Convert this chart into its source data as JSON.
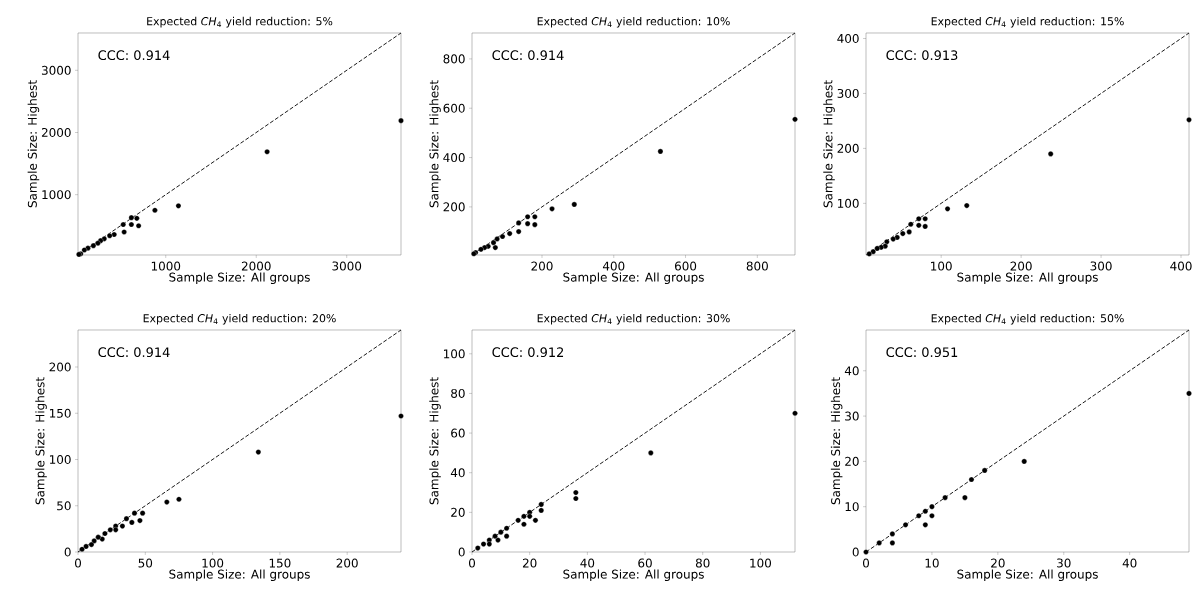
{
  "chart_data": [
    {
      "type": "scatter",
      "title": "Expected *CH*$_{4}$ yield reduction: 5%",
      "xlabel": "Sample Size: All groups",
      "ylabel": "Sample Size: Highest",
      "annotations": [
        "CCC: 0.914"
      ],
      "xlim": [
        30,
        3600
      ],
      "ylim": [
        30,
        3600
      ],
      "xticks": [
        1000,
        2000,
        3000
      ],
      "yticks": [
        1000,
        2000,
        3000
      ],
      "series": [
        {
          "marker": "circle",
          "color": "#000000",
          "x": [
            3600,
            2120,
            1140,
            880,
            680,
            700,
            620,
            620,
            530,
            540,
            430,
            380,
            320,
            280,
            250,
            200,
            140,
            100,
            60,
            40
          ],
          "values": [
            2190,
            1690,
            820,
            750,
            620,
            500,
            630,
            520,
            520,
            400,
            360,
            340,
            290,
            260,
            220,
            180,
            140,
            110,
            50,
            40
          ]
        },
        {
          "type": "line",
          "color": "#000000",
          "line_style": "dashed",
          "x": [
            30,
            3600
          ],
          "values": [
            30,
            3600
          ]
        }
      ]
    },
    {
      "type": "scatter",
      "title": "Expected *CH*$_{4}$ yield reduction: 10%",
      "xlabel": "Sample Size: All groups",
      "ylabel": "Sample Size: Highest",
      "annotations": [
        "CCC: 0.914"
      ],
      "xlim": [
        5,
        905
      ],
      "ylim": [
        5,
        905
      ],
      "xticks": [
        200,
        400,
        600,
        800
      ],
      "yticks": [
        200,
        400,
        600,
        800
      ],
      "series": [
        {
          "marker": "circle",
          "color": "#000000",
          "x": [
            905,
            530,
            290,
            228,
            180,
            160,
            180,
            160,
            135,
            135,
            110,
            90,
            75,
            65,
            70,
            50,
            40,
            30,
            15,
            10
          ],
          "values": [
            555,
            425,
            210,
            192,
            160,
            160,
            128,
            132,
            135,
            100,
            92,
            80,
            70,
            55,
            35,
            40,
            35,
            28,
            15,
            10
          ]
        },
        {
          "type": "line",
          "color": "#000000",
          "line_style": "dashed",
          "x": [
            5,
            905
          ],
          "values": [
            5,
            905
          ]
        }
      ]
    },
    {
      "type": "scatter",
      "title": "Expected *CH*$_{4}$ yield reduction: 15%",
      "xlabel": "Sample Size: All groups",
      "ylabel": "Sample Size: Highest",
      "annotations": [
        "CCC: 0.913"
      ],
      "xlim": [
        6,
        410
      ],
      "ylim": [
        6,
        410
      ],
      "xticks": [
        100,
        200,
        300,
        400
      ],
      "yticks": [
        100,
        200,
        300,
        400
      ],
      "series": [
        {
          "marker": "circle",
          "color": "#000000",
          "x": [
            410,
            237,
            132,
            108,
            80,
            72,
            80,
            72,
            62,
            60,
            52,
            45,
            40,
            32,
            30,
            25,
            20,
            15,
            10
          ],
          "values": [
            252,
            190,
            96,
            90,
            72,
            72,
            58,
            60,
            62,
            48,
            45,
            38,
            35,
            30,
            22,
            20,
            18,
            12,
            8
          ]
        },
        {
          "type": "line",
          "color": "#000000",
          "line_style": "dashed",
          "x": [
            6,
            410
          ],
          "values": [
            6,
            410
          ]
        }
      ]
    },
    {
      "type": "scatter",
      "title": "Expected *CH*$_{4}$ yield reduction: 20%",
      "xlabel": "Sample Size: All groups",
      "ylabel": "Sample Size: Highest",
      "annotations": [
        "CCC: 0.914"
      ],
      "xlim": [
        0,
        240
      ],
      "ylim": [
        0,
        240
      ],
      "xticks": [
        0,
        50,
        100,
        150,
        200
      ],
      "yticks": [
        0,
        50,
        100,
        150,
        200
      ],
      "series": [
        {
          "marker": "circle",
          "color": "#000000",
          "x": [
            240,
            134,
            75,
            66,
            48,
            42,
            46,
            36,
            40,
            33,
            28,
            28,
            24,
            20,
            18,
            15,
            12,
            10,
            6,
            3
          ],
          "values": [
            147,
            108,
            57,
            54,
            42,
            42,
            34,
            36,
            32,
            28,
            28,
            24,
            24,
            20,
            14,
            16,
            12,
            8,
            6,
            3
          ]
        },
        {
          "type": "line",
          "color": "#000000",
          "line_style": "dashed",
          "x": [
            0,
            240
          ],
          "values": [
            0,
            240
          ]
        }
      ]
    },
    {
      "type": "scatter",
      "title": "Expected *CH*$_{4}$ yield reduction: 30%",
      "xlabel": "Sample Size: All groups",
      "ylabel": "Sample Size: Highest",
      "annotations": [
        "CCC: 0.912"
      ],
      "xlim": [
        0,
        112
      ],
      "ylim": [
        0,
        112
      ],
      "xticks": [
        0,
        20,
        40,
        60,
        80,
        100
      ],
      "yticks": [
        0,
        20,
        40,
        60,
        80,
        100
      ],
      "series": [
        {
          "marker": "circle",
          "color": "#000000",
          "x": [
            112,
            62,
            36,
            36,
            24,
            24,
            22,
            20,
            20,
            18,
            18,
            16,
            12,
            12,
            10,
            9,
            8,
            6,
            6,
            4,
            2
          ],
          "values": [
            70,
            50,
            30,
            27,
            24,
            21,
            16,
            20,
            18,
            18,
            14,
            16,
            12,
            8,
            10,
            6,
            8,
            6,
            4,
            4,
            2
          ]
        },
        {
          "type": "line",
          "color": "#000000",
          "line_style": "dashed",
          "x": [
            0,
            112
          ],
          "values": [
            0,
            112
          ]
        }
      ]
    },
    {
      "type": "scatter",
      "title": "Expected *CH*$_{4}$ yield reduction: 50%",
      "xlabel": "Sample Size: All groups",
      "ylabel": "Sample Size: Highest",
      "annotations": [
        "CCC: 0.951"
      ],
      "xlim": [
        0,
        49
      ],
      "ylim": [
        0,
        49
      ],
      "xticks": [
        0,
        10,
        20,
        30,
        40
      ],
      "yticks": [
        0,
        10,
        20,
        30,
        40
      ],
      "series": [
        {
          "marker": "circle",
          "color": "#000000",
          "x": [
            49,
            24,
            18,
            16,
            15,
            12,
            10,
            10,
            9,
            9,
            8,
            6,
            4,
            4,
            2,
            0
          ],
          "values": [
            35,
            20,
            18,
            16,
            12,
            12,
            10,
            8,
            9,
            6,
            8,
            6,
            4,
            2,
            2,
            0
          ]
        },
        {
          "type": "line",
          "color": "#000000",
          "line_style": "dashed",
          "x": [
            0,
            49
          ],
          "values": [
            0,
            49
          ]
        }
      ]
    }
  ]
}
